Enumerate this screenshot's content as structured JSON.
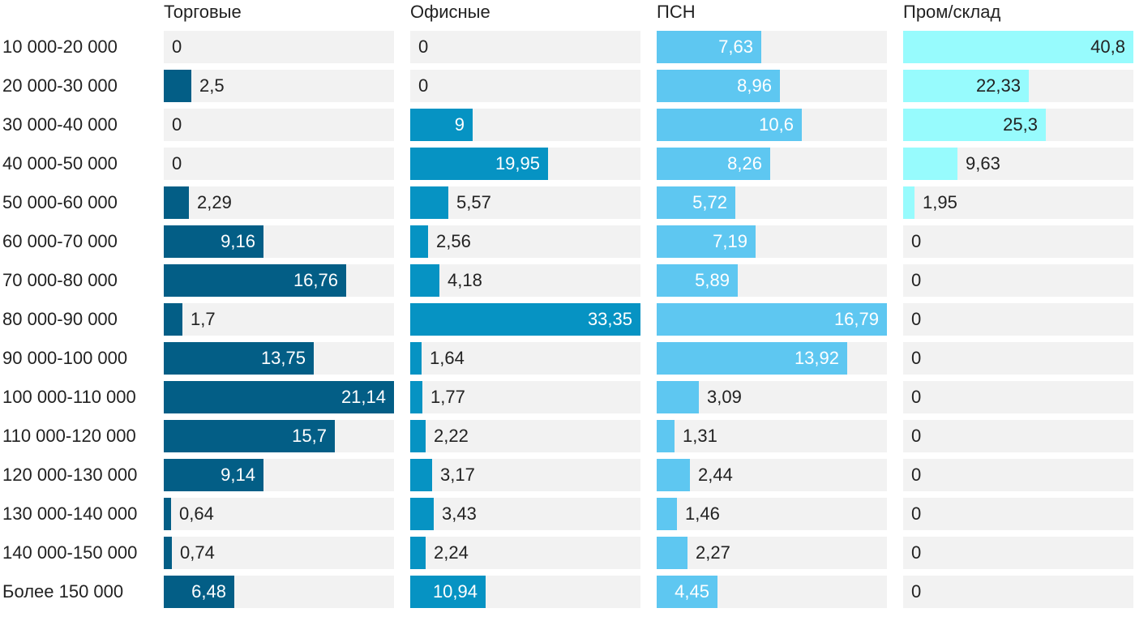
{
  "chart_data": {
    "type": "bar",
    "orientation": "horizontal",
    "categories": [
      "10 000-20 000",
      "20 000-30 000",
      "30 000-40 000",
      "40 000-50 000",
      "50 000-60 000",
      "60 000-70 000",
      "70 000-80 000",
      "80 000-90 000",
      "90 000-100 000",
      "100 000-110 000",
      "110 000-120 000",
      "120 000-130 000",
      "130 000-140 000",
      "140 000-150 000",
      "Более 150 000"
    ],
    "series": [
      {
        "name": "Торговые",
        "color": "#035e86",
        "value_labels": [
          "0",
          "2,5",
          "0",
          "0",
          "2,29",
          "9,16",
          "16,76",
          "1,7",
          "13,75",
          "21,14",
          "15,7",
          "9,14",
          "0,64",
          "0,74",
          "6,48"
        ],
        "values": [
          0,
          2.5,
          0,
          0,
          2.29,
          9.16,
          16.76,
          1.7,
          13.75,
          21.14,
          15.7,
          9.14,
          0.64,
          0.74,
          6.48
        ]
      },
      {
        "name": "Офисные",
        "color": "#0693c3",
        "value_labels": [
          "0",
          "0",
          "9",
          "19,95",
          "5,57",
          "2,56",
          "4,18",
          "33,35",
          "1,64",
          "1,77",
          "2,22",
          "3,17",
          "3,43",
          "2,24",
          "10,94"
        ],
        "values": [
          0,
          0,
          9,
          19.95,
          5.57,
          2.56,
          4.18,
          33.35,
          1.64,
          1.77,
          2.22,
          3.17,
          3.43,
          2.24,
          10.94
        ]
      },
      {
        "name": "ПСН",
        "color": "#5ec7f1",
        "value_labels": [
          "7,63",
          "8,96",
          "10,6",
          "8,26",
          "5,72",
          "7,19",
          "5,89",
          "16,79",
          "13,92",
          "3,09",
          "1,31",
          "2,44",
          "1,46",
          "2,27",
          "4,45"
        ],
        "values": [
          7.63,
          8.96,
          10.6,
          8.26,
          5.72,
          7.19,
          5.89,
          16.79,
          13.92,
          3.09,
          1.31,
          2.44,
          1.46,
          2.27,
          4.45
        ]
      },
      {
        "name": "Пром/склад",
        "color": "#97fbfd",
        "value_labels": [
          "40,8",
          "22,33",
          "25,3",
          "9,63",
          "1,95",
          "0",
          "0",
          "0",
          "0",
          "0",
          "0",
          "0",
          "0",
          "0",
          "0"
        ],
        "values": [
          40.8,
          22.33,
          25.3,
          9.63,
          1.95,
          0,
          0,
          0,
          0,
          0,
          0,
          0,
          0,
          0,
          0
        ]
      }
    ],
    "grid": false,
    "legend": "none"
  }
}
